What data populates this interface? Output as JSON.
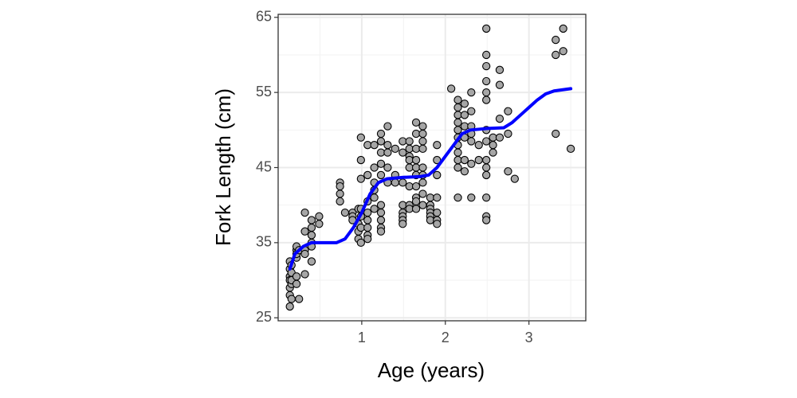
{
  "chart_data": {
    "type": "scatter",
    "xlabel": "Age (years)",
    "ylabel": "Fork Length (cm)",
    "xlim": [
      0,
      3.68
    ],
    "ylim": [
      24.6,
      65.4
    ],
    "xticks": [
      1,
      2,
      3
    ],
    "yticks": [
      25,
      35,
      45,
      55,
      65
    ],
    "x_minor_ticks": [
      0.5,
      1.5,
      2.5,
      3.5
    ],
    "y_minor_ticks": [
      30,
      40,
      50,
      60
    ],
    "grid": true,
    "series": [
      {
        "type": "scatter",
        "color": "#a6a6a6",
        "edgecolor": "#000000",
        "x": [
          0.14,
          0.14,
          0.14,
          0.14,
          0.14,
          0.14,
          0.14,
          0.16,
          0.16,
          0.16,
          0.16,
          0.16,
          0.22,
          0.22,
          0.22,
          0.22,
          0.22,
          0.22,
          0.25,
          0.25,
          0.32,
          0.32,
          0.32,
          0.32,
          0.32,
          0.4,
          0.4,
          0.4,
          0.4,
          0.4,
          0.4,
          0.49,
          0.49,
          0.74,
          0.74,
          0.74,
          0.74,
          0.8,
          0.89,
          0.89,
          0.89,
          0.96,
          0.96,
          0.96,
          0.96,
          0.99,
          0.99,
          0.99,
          0.99,
          0.99,
          0.99,
          0.99,
          1.07,
          1.07,
          1.07,
          1.07,
          1.07,
          1.07,
          1.07,
          1.07,
          1.15,
          1.15,
          1.15,
          1.15,
          1.15,
          1.15,
          1.23,
          1.23,
          1.23,
          1.23,
          1.23,
          1.23,
          1.23,
          1.23,
          1.23,
          1.23,
          1.31,
          1.31,
          1.31,
          1.31,
          1.31,
          1.4,
          1.4,
          1.4,
          1.49,
          1.49,
          1.49,
          1.49,
          1.49,
          1.49,
          1.49,
          1.49,
          1.57,
          1.57,
          1.57,
          1.57,
          1.57,
          1.57,
          1.57,
          1.57,
          1.65,
          1.65,
          1.65,
          1.65,
          1.65,
          1.65,
          1.65,
          1.65,
          1.65,
          1.65,
          1.73,
          1.73,
          1.73,
          1.73,
          1.73,
          1.73,
          1.73,
          1.73,
          1.73,
          1.82,
          1.82,
          1.82,
          1.82,
          1.82,
          1.82,
          1.9,
          1.9,
          1.9,
          1.9,
          1.9,
          1.9,
          1.9,
          2.07,
          2.15,
          2.15,
          2.15,
          2.15,
          2.15,
          2.15,
          2.15,
          2.15,
          2.15,
          2.15,
          2.15,
          2.23,
          2.23,
          2.23,
          2.23,
          2.23,
          2.23,
          2.31,
          2.31,
          2.31,
          2.31,
          2.31,
          2.31,
          2.31,
          2.4,
          2.4,
          2.49,
          2.49,
          2.49,
          2.49,
          2.49,
          2.49,
          2.49,
          2.49,
          2.49,
          2.49,
          2.49,
          2.49,
          2.49,
          2.49,
          2.57,
          2.57,
          2.57,
          2.65,
          2.65,
          2.65,
          2.65,
          2.75,
          2.75,
          2.75,
          2.83,
          3.32,
          3.32,
          3.32,
          3.41,
          3.41,
          3.5
        ],
        "values": [
          32.5,
          31.5,
          30.5,
          30,
          29,
          28,
          26.5,
          27.5,
          29.5,
          30,
          31,
          32,
          33,
          34,
          34.5,
          33.5,
          29.5,
          30.5,
          27.5,
          34,
          39,
          36.5,
          34,
          33.5,
          30.8,
          38,
          37,
          36,
          35,
          34.5,
          32.5,
          38.5,
          37.5,
          43,
          42.5,
          41.5,
          40.5,
          39,
          39,
          38.5,
          38,
          37.5,
          36.5,
          35.5,
          39.5,
          49,
          46,
          43.5,
          39.5,
          38.5,
          37,
          35,
          48,
          44,
          40.5,
          38,
          36,
          35.5,
          37,
          39,
          48,
          45,
          43,
          42,
          41,
          39.5,
          49.5,
          48.5,
          47,
          45.5,
          44,
          39,
          38,
          37,
          36.5,
          40,
          50.5,
          48,
          47,
          45,
          43,
          47.5,
          44,
          43,
          48.5,
          47,
          40,
          39,
          38.5,
          38,
          37.5,
          43,
          48.5,
          47.5,
          46.5,
          46,
          45,
          42.5,
          40,
          39.5,
          51,
          49.5,
          47.5,
          46,
          45,
          44,
          42.5,
          41,
          40.5,
          39.5,
          50.5,
          49.5,
          48.5,
          47.5,
          45,
          44,
          43,
          41.5,
          40,
          41,
          40,
          39.5,
          39,
          38.5,
          38,
          48,
          46,
          44,
          41,
          39,
          38,
          37.5,
          55.5,
          54,
          53,
          52,
          51,
          50,
          49,
          48,
          47,
          46,
          45,
          41,
          53.5,
          52,
          50.5,
          49,
          46,
          44.5,
          55,
          52.5,
          50.5,
          49.5,
          48.5,
          45.5,
          41,
          48,
          46,
          63.5,
          60,
          58.5,
          56.5,
          55,
          54,
          50,
          48.5,
          46,
          45,
          44,
          41,
          38.5,
          38,
          49,
          48,
          47,
          58,
          56,
          51.5,
          49,
          52.5,
          49.5,
          44.5,
          43.5,
          62,
          60,
          49.5,
          63.5,
          60.5,
          47.5
        ]
      },
      {
        "type": "line",
        "color": "#0000ff",
        "x": [
          0.14,
          0.2,
          0.3,
          0.4,
          0.5,
          0.7,
          0.8,
          0.9,
          1.0,
          1.1,
          1.2,
          1.3,
          1.5,
          1.7,
          1.8,
          1.9,
          2.0,
          2.1,
          2.2,
          2.3,
          2.5,
          2.7,
          2.8,
          2.9,
          3.0,
          3.1,
          3.2,
          3.3,
          3.5
        ],
        "values": [
          31.5,
          33.5,
          34.5,
          35,
          35,
          35,
          35.5,
          37,
          39,
          41.5,
          43,
          43.5,
          43.7,
          43.8,
          44,
          45,
          46.5,
          48,
          49.5,
          50,
          50.2,
          50.3,
          51,
          52,
          53,
          54,
          54.8,
          55.2,
          55.5
        ]
      }
    ]
  }
}
